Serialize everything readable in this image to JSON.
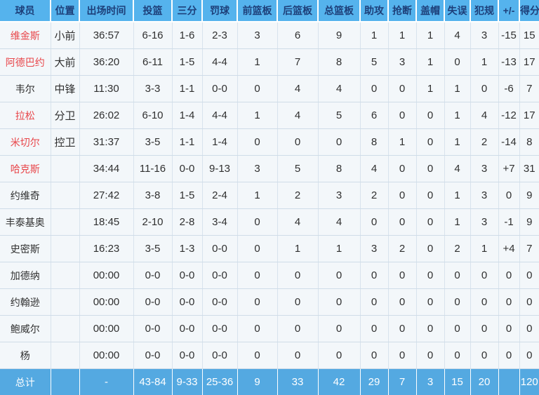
{
  "table": {
    "columns": [
      "球员",
      "位置",
      "出场时间",
      "投篮",
      "三分",
      "罚球",
      "前篮板",
      "后篮板",
      "总篮板",
      "助攻",
      "抢断",
      "盖帽",
      "失误",
      "犯规",
      "+/-",
      "得分"
    ],
    "rows": [
      {
        "name": "维金斯",
        "highlight": true,
        "cells": [
          "小前",
          "36:57",
          "6-16",
          "1-6",
          "2-3",
          "3",
          "6",
          "9",
          "1",
          "1",
          "1",
          "4",
          "3",
          "-15",
          "15"
        ]
      },
      {
        "name": "阿德巴约",
        "highlight": true,
        "cells": [
          "大前",
          "36:20",
          "6-11",
          "1-5",
          "4-4",
          "1",
          "7",
          "8",
          "5",
          "3",
          "1",
          "0",
          "1",
          "-13",
          "17"
        ]
      },
      {
        "name": "韦尔",
        "highlight": false,
        "cells": [
          "中锋",
          "11:30",
          "3-3",
          "1-1",
          "0-0",
          "0",
          "4",
          "4",
          "0",
          "0",
          "1",
          "1",
          "0",
          "-6",
          "7"
        ]
      },
      {
        "name": "拉松",
        "highlight": true,
        "cells": [
          "分卫",
          "26:02",
          "6-10",
          "1-4",
          "4-4",
          "1",
          "4",
          "5",
          "6",
          "0",
          "0",
          "1",
          "4",
          "-12",
          "17"
        ]
      },
      {
        "name": "米切尔",
        "highlight": true,
        "cells": [
          "控卫",
          "31:37",
          "3-5",
          "1-1",
          "1-4",
          "0",
          "0",
          "0",
          "8",
          "1",
          "0",
          "1",
          "2",
          "-14",
          "8"
        ]
      },
      {
        "name": "哈克斯",
        "highlight": true,
        "cells": [
          "",
          "34:44",
          "11-16",
          "0-0",
          "9-13",
          "3",
          "5",
          "8",
          "4",
          "0",
          "0",
          "4",
          "3",
          "+7",
          "31"
        ]
      },
      {
        "name": "约维奇",
        "highlight": false,
        "cells": [
          "",
          "27:42",
          "3-8",
          "1-5",
          "2-4",
          "1",
          "2",
          "3",
          "2",
          "0",
          "0",
          "1",
          "3",
          "0",
          "9"
        ]
      },
      {
        "name": "丰泰基奥",
        "highlight": false,
        "cells": [
          "",
          "18:45",
          "2-10",
          "2-8",
          "3-4",
          "0",
          "4",
          "4",
          "0",
          "0",
          "0",
          "1",
          "3",
          "-1",
          "9"
        ]
      },
      {
        "name": "史密斯",
        "highlight": false,
        "cells": [
          "",
          "16:23",
          "3-5",
          "1-3",
          "0-0",
          "0",
          "1",
          "1",
          "3",
          "2",
          "0",
          "2",
          "1",
          "+4",
          "7"
        ]
      },
      {
        "name": "加德纳",
        "highlight": false,
        "cells": [
          "",
          "00:00",
          "0-0",
          "0-0",
          "0-0",
          "0",
          "0",
          "0",
          "0",
          "0",
          "0",
          "0",
          "0",
          "0",
          "0"
        ]
      },
      {
        "name": "约翰逊",
        "highlight": false,
        "cells": [
          "",
          "00:00",
          "0-0",
          "0-0",
          "0-0",
          "0",
          "0",
          "0",
          "0",
          "0",
          "0",
          "0",
          "0",
          "0",
          "0"
        ]
      },
      {
        "name": "鲍威尔",
        "highlight": false,
        "cells": [
          "",
          "00:00",
          "0-0",
          "0-0",
          "0-0",
          "0",
          "0",
          "0",
          "0",
          "0",
          "0",
          "0",
          "0",
          "0",
          "0"
        ]
      },
      {
        "name": "杨",
        "highlight": false,
        "cells": [
          "",
          "00:00",
          "0-0",
          "0-0",
          "0-0",
          "0",
          "0",
          "0",
          "0",
          "0",
          "0",
          "0",
          "0",
          "0",
          "0"
        ]
      }
    ],
    "total": {
      "label": "总计",
      "cells": [
        "",
        "-",
        "43-84",
        "9-33",
        "25-36",
        "9",
        "33",
        "42",
        "29",
        "7",
        "3",
        "15",
        "20",
        "",
        "120"
      ]
    },
    "colors": {
      "header_bg": "#55b3ed",
      "header_text": "#1d3f79",
      "row_bg": "#f3f7fa",
      "row_border": "#cfdce8",
      "highlight_name": "#e8474b",
      "total_bg": "#54a9e1",
      "total_text": "#ffffff"
    }
  }
}
